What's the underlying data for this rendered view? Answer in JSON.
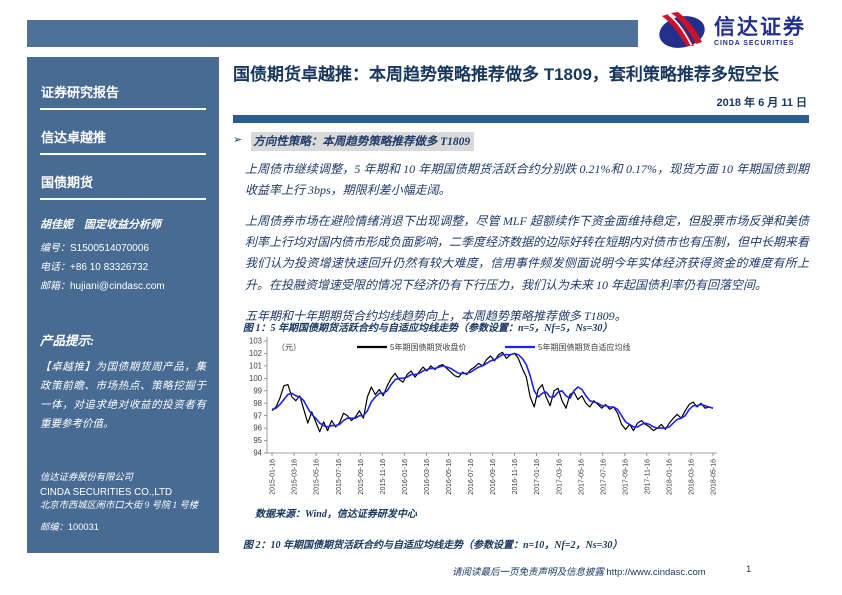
{
  "brand": {
    "logo_cn": "信达证券",
    "logo_en": "CINDA SECURITIES",
    "colors": {
      "logo_blue": "#232F8C",
      "logo_red": "#CC1226",
      "bar_blue": "#4D7199",
      "sidebar_blue": "#486B94",
      "divider_blue": "#2C5D92",
      "title_navy": "#17375E",
      "body_navy": "#1F3A68",
      "highlight_gray": "#D9D9D9"
    }
  },
  "header": {
    "title": "国债期货卓越推：本周趋势策略推荐做多 T1809，套利策略推荐多短空长",
    "date": "2018 年 6 月 11 日"
  },
  "sidebar": {
    "items": [
      {
        "label": "证券研究报告"
      },
      {
        "label": "信达卓越推"
      },
      {
        "label": "国债期货"
      }
    ],
    "analyst": {
      "name_line": "胡佳妮　固定收益分析师",
      "rows": [
        {
          "label": "编号：",
          "value": "S1500514070006"
        },
        {
          "label": "电话：",
          "value": "+86 10 83326732"
        },
        {
          "label": "邮箱：",
          "value": "hujiani@cindasc.com"
        }
      ]
    },
    "product_note": {
      "heading": "产品提示:",
      "body": "【卓越推】为国债期货周产品，集政策前瞻、市场热点、策略挖掘于一体，对追求绝对收益的投资者有重要参考价值。"
    },
    "company": {
      "name_cn": "信达证券股份有限公司",
      "name_en": "CINDA SECURITIES CO.,LTD",
      "address": "北京市西城区闹市口大街 9 号院 1 号楼",
      "postcode_label": "邮编：",
      "postcode": "100031"
    }
  },
  "main": {
    "bullet": "➢",
    "section_heading": "方向性策略：本周趋势策略推荐做多 T1809",
    "paragraphs": [
      "上周债市继续调整，5 年期和 10 年期国债期货活跃合约分别跌 0.21%和 0.17%，现货方面 10 年期国债到期收益率上行 3bps，期限利差小幅走阔。",
      "上周债券市场在避险情绪消退下出现调整，尽管 MLF 超额续作下资金面维持稳定，但股票市场反弹和美债利率上行均对国内债市形成负面影响，二季度经济数据的边际好转在短期内对债市也有压制，但中长期来看我们认为投资增速快速回升仍然有较大难度，信用事件频发侧面说明今年实体经济获得资金的难度有所上升。在投融资增速受限的情况下经济仍有下行压力，我们认为未来 10 年起国债利率仍有回落空间。",
      "五年期和十年期期货合约均线趋势向上，本周趋势策略推荐做多 T1809。"
    ],
    "figure1_caption": "图 1：5 年期国债期货活跃合约与自适应均线走势（参数设置：n=5，Nf=5，Ns=30）",
    "source_note": "数据来源：Wind，信达证券研发中心",
    "figure2_caption": "图 2：10 年期国债期货活跃合约与自适应均线走势（参数设置：n=10，Nf=2，Ns=30）"
  },
  "footer": {
    "disclaimer": "请阅读最后一页免责声明及信息披露",
    "url": "http://www.cindasc.com",
    "page_number": "1"
  },
  "chart_data": {
    "type": "line",
    "title": "5 年期国债期货活跃合约与自适应均线走势",
    "unit_label": "（元）",
    "ylim": [
      94,
      103
    ],
    "y_ticks": [
      94,
      95,
      96,
      97,
      98,
      99,
      100,
      101,
      102,
      103
    ],
    "grid": false,
    "legend_position": "top",
    "x_ticks": [
      "2015-01-16",
      "2015-03-16",
      "2015-05-16",
      "2015-07-16",
      "2015-09-16",
      "2015-11-16",
      "2016-01-16",
      "2016-03-16",
      "2016-05-16",
      "2016-07-16",
      "2016-09-16",
      "2016-11-16",
      "2017-01-16",
      "2017-03-16",
      "2017-05-16",
      "2017-07-16",
      "2017-09-16",
      "2017-11-16",
      "2018-01-16",
      "2018-03-16",
      "2018-05-16"
    ],
    "series": [
      {
        "name": "5年期国债期货收盘价",
        "color": "#000000",
        "width": 1.2,
        "values": [
          97.4,
          97.7,
          98.4,
          99.4,
          99.5,
          98.5,
          98.2,
          98.6,
          97.5,
          96.4,
          97.3,
          96.5,
          95.7,
          96.5,
          95.8,
          96.6,
          96.1,
          96.4,
          97.2,
          97.0,
          96.6,
          96.9,
          97.4,
          96.8,
          98.5,
          99.3,
          98.7,
          99.1,
          98.6,
          99.4,
          100.0,
          100.4,
          99.9,
          99.7,
          100.3,
          100.6,
          100.1,
          100.5,
          100.9,
          100.6,
          101.0,
          100.7,
          101.0,
          101.1,
          100.8,
          100.5,
          100.2,
          100.1,
          100.5,
          100.3,
          100.7,
          100.9,
          101.2,
          101.0,
          101.5,
          101.8,
          101.4,
          101.9,
          102.1,
          101.6,
          101.9,
          102.0,
          101.6,
          100.8,
          100.1,
          98.5,
          97.7,
          99.1,
          99.5,
          98.5,
          97.8,
          99.0,
          99.2,
          98.2,
          97.6,
          98.7,
          98.9,
          98.3,
          98.6,
          98.0,
          97.7,
          98.2,
          97.9,
          97.6,
          97.9,
          97.5,
          97.7,
          97.2,
          96.3,
          95.9,
          96.3,
          95.8,
          96.4,
          96.6,
          96.3,
          96.1,
          95.8,
          96.0,
          96.3,
          95.9,
          96.4,
          96.8,
          97.1,
          96.8,
          97.4,
          97.9,
          98.1,
          97.7,
          98.0,
          97.6,
          97.7,
          97.6
        ]
      },
      {
        "name": "5年期国债期货自适应均线",
        "color": "#1C24DF",
        "width": 1.6,
        "values": [
          97.5,
          97.6,
          97.9,
          98.3,
          98.7,
          98.8,
          98.6,
          98.5,
          98.2,
          97.6,
          97.1,
          96.8,
          96.4,
          96.2,
          96.1,
          96.2,
          96.2,
          96.3,
          96.6,
          96.8,
          96.8,
          96.8,
          97.0,
          97.0,
          97.4,
          98.1,
          98.5,
          98.8,
          98.8,
          99.0,
          99.5,
          99.9,
          100.0,
          100.0,
          100.1,
          100.3,
          100.3,
          100.4,
          100.6,
          100.7,
          100.8,
          100.8,
          100.9,
          101.0,
          100.9,
          100.8,
          100.6,
          100.4,
          100.4,
          100.4,
          100.5,
          100.7,
          100.9,
          101.0,
          101.2,
          101.4,
          101.5,
          101.7,
          101.9,
          101.9,
          101.9,
          102.0,
          101.9,
          101.6,
          101.1,
          100.2,
          99.0,
          98.5,
          98.8,
          98.9,
          98.5,
          98.5,
          98.9,
          99.0,
          98.6,
          98.4,
          99.0,
          99.3,
          99.1,
          98.6,
          98.2,
          98.1,
          98.0,
          97.8,
          97.8,
          97.7,
          97.7,
          97.5,
          97.0,
          96.5,
          96.3,
          96.1,
          96.1,
          96.3,
          96.4,
          96.3,
          96.1,
          96.0,
          96.0,
          96.0,
          96.1,
          96.4,
          96.7,
          96.8,
          97.0,
          97.5,
          97.8,
          97.8,
          97.9,
          97.8,
          97.7,
          97.6
        ]
      }
    ]
  }
}
